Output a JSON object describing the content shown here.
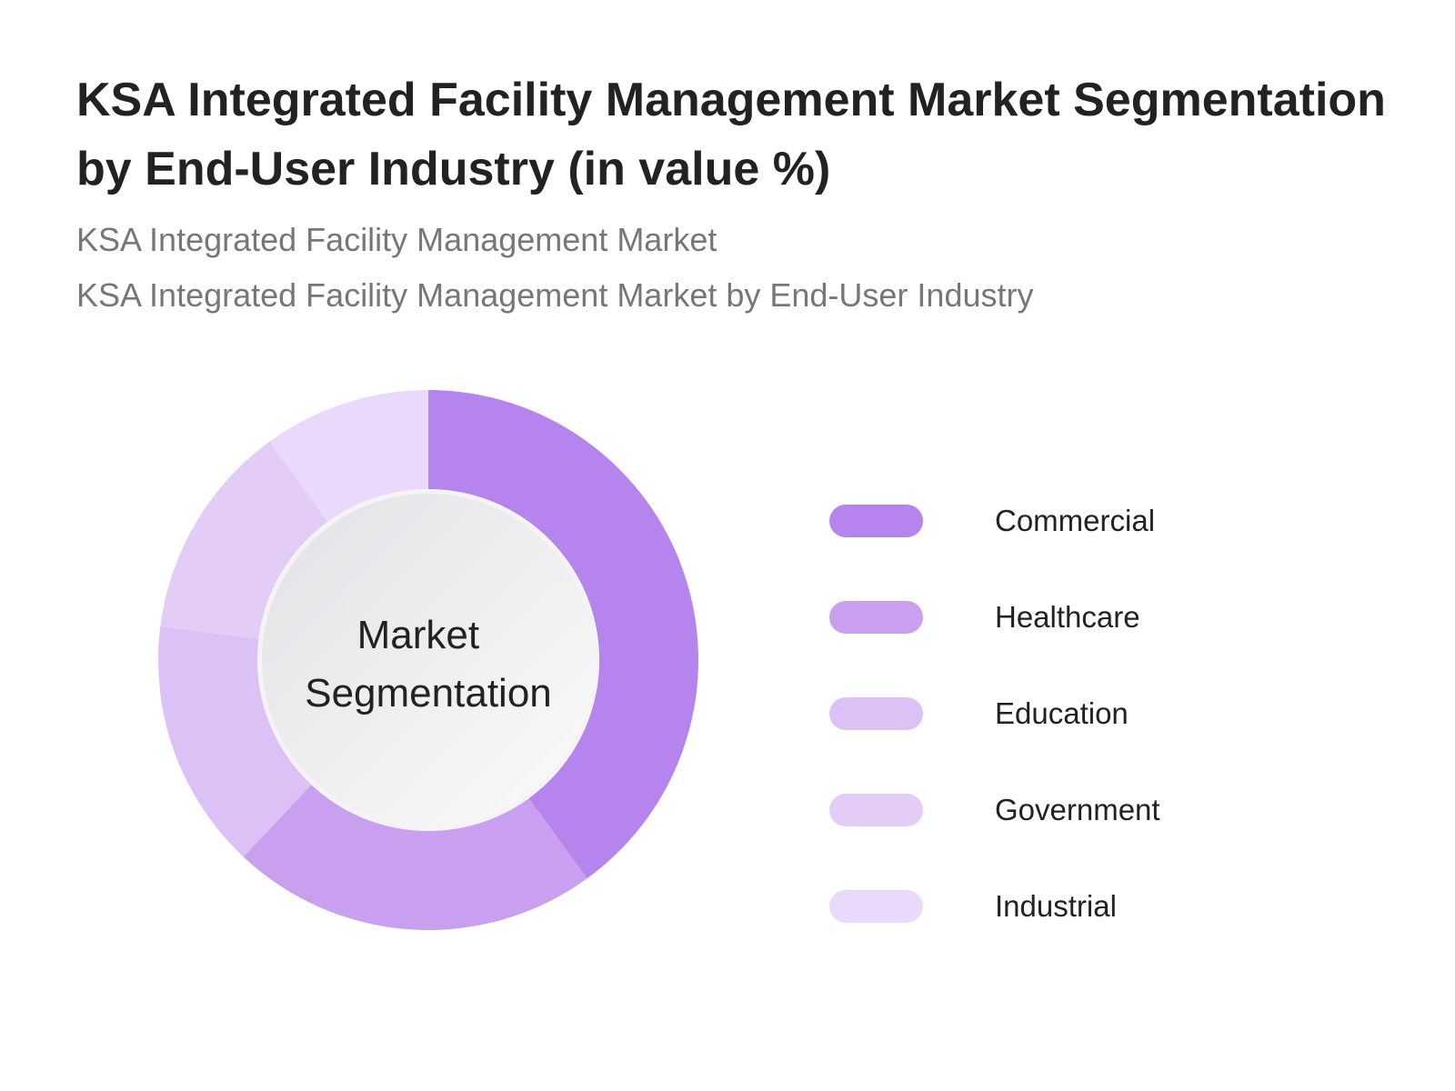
{
  "header": {
    "title": "KSA Integrated Facility Management Market Segmentation by End-User Industry (in value %)",
    "subtitle_1": "KSA Integrated Facility Management Market",
    "subtitle_2": "KSA Integrated Facility Management Market by End-User Industry"
  },
  "chart_data": {
    "type": "pie",
    "variant": "donut",
    "title": "KSA Integrated Facility Management Market Segmentation by End-User Industry (in value %)",
    "center_label": [
      "Market",
      "Segmentation"
    ],
    "categories": [
      "Commercial",
      "Healthcare",
      "Education",
      "Government",
      "Industrial"
    ],
    "values": [
      40,
      22,
      15,
      13,
      10
    ],
    "colors": [
      "#b584ec",
      "#c8a0ef",
      "#dbc1f5",
      "#e3cdf7",
      "#ead9fa"
    ],
    "legend_position": "right"
  }
}
